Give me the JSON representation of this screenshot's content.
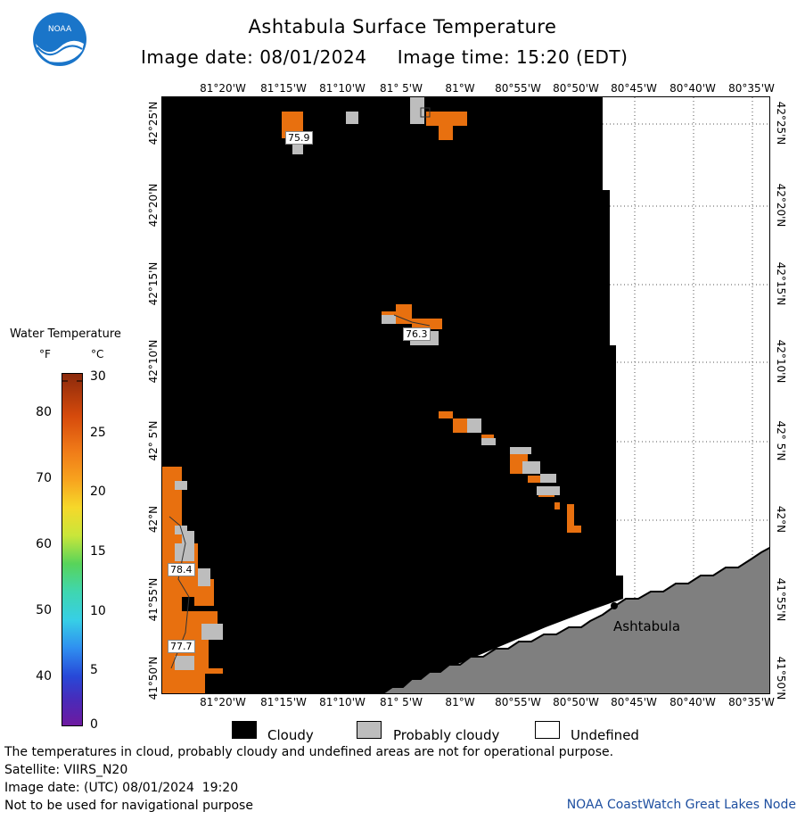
{
  "header": {
    "title": "Ashtabula Surface Temperature",
    "image_date": "Image date: 08/01/2024",
    "image_time": "Image time: 15:20 (EDT)",
    "logo_text": "NOAA"
  },
  "map": {
    "lon_labels": [
      "81°20'W",
      "81°15'W",
      "81°10'W",
      "81° 5'W",
      "81°W",
      "80°55'W",
      "80°50'W",
      "80°45'W",
      "80°40'W",
      "80°35'W"
    ],
    "lat_labels": [
      "42°25'N",
      "42°20'N",
      "42°15'N",
      "42°10'N",
      "42° 5'N",
      "42°N",
      "41°55'N",
      "41°50'N"
    ],
    "temperature_labels": [
      "75.9",
      "76.3",
      "78.4",
      "77.7"
    ],
    "city_label": "Ashtabula",
    "colors": {
      "cloudy": "#000000",
      "probably_cloudy": "#bdbdbd",
      "undefined": "#ffffff",
      "land": "#808080",
      "warm_water": "#e8700f"
    }
  },
  "legend": {
    "title": "Water Temperature",
    "unit_f": "°F",
    "unit_c": "°C",
    "ticks_f": [
      "80",
      "70",
      "60",
      "50",
      "40"
    ],
    "ticks_c": [
      "30",
      "25",
      "20",
      "15",
      "10",
      "5",
      "0"
    ],
    "keys": [
      {
        "label": "Cloudy",
        "color": "#000000"
      },
      {
        "label": "Probably cloudy",
        "color": "#bdbdbd"
      },
      {
        "label": "Undefined",
        "color": "#ffffff"
      }
    ]
  },
  "footer": {
    "disclaimer": "The temperatures in cloud, probably cloudy and undefined areas are not for operational purpose.",
    "satellite": "Satellite: VIIRS_N20",
    "utc_date": "Image date: (UTC) 08/01/2024  19:20",
    "nav_warning": "Not to be used for navigational purpose",
    "credit": "NOAA CoastWatch Great Lakes Node"
  }
}
